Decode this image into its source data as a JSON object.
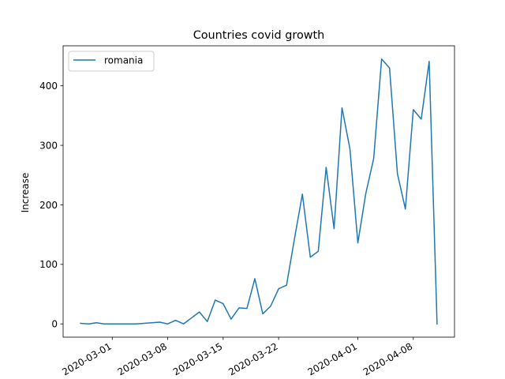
{
  "chart_data": {
    "type": "line",
    "title": "Countries covid growth",
    "xlabel": "",
    "ylabel": "Increase",
    "x": [
      "2020-02-26",
      "2020-02-27",
      "2020-02-28",
      "2020-02-29",
      "2020-03-01",
      "2020-03-02",
      "2020-03-03",
      "2020-03-04",
      "2020-03-05",
      "2020-03-06",
      "2020-03-07",
      "2020-03-08",
      "2020-03-09",
      "2020-03-10",
      "2020-03-11",
      "2020-03-12",
      "2020-03-13",
      "2020-03-14",
      "2020-03-15",
      "2020-03-16",
      "2020-03-17",
      "2020-03-18",
      "2020-03-19",
      "2020-03-20",
      "2020-03-21",
      "2020-03-22",
      "2020-03-23",
      "2020-03-24",
      "2020-03-25",
      "2020-03-26",
      "2020-03-27",
      "2020-03-28",
      "2020-03-29",
      "2020-03-30",
      "2020-03-31",
      "2020-04-01",
      "2020-04-02",
      "2020-04-03",
      "2020-04-04",
      "2020-04-05",
      "2020-04-06",
      "2020-04-07",
      "2020-04-08",
      "2020-04-09",
      "2020-04-10",
      "2020-04-11"
    ],
    "series": [
      {
        "name": "romania",
        "color": "#1f77b4",
        "values": [
          1,
          0,
          2,
          0,
          0,
          0,
          0,
          0,
          1,
          2,
          3,
          0,
          6,
          0,
          10,
          20,
          4,
          40,
          34,
          8,
          27,
          26,
          76,
          17,
          30,
          59,
          65,
          143,
          218,
          112,
          122,
          263,
          160,
          363,
          294,
          136,
          219,
          278,
          445,
          430,
          252,
          193,
          360,
          344,
          441,
          0
        ]
      }
    ],
    "xticks": [
      "2020-03-01",
      "2020-03-08",
      "2020-03-15",
      "2020-03-22",
      "2020-04-01",
      "2020-04-08"
    ],
    "yticks": [
      0,
      100,
      200,
      300,
      400
    ],
    "xlim": [
      "2020-02-23T19:12",
      "2020-04-13T04:48"
    ],
    "ylim": [
      -22.25,
      467.25
    ],
    "legend": {
      "position": "upper-left",
      "entries": [
        "romania"
      ]
    },
    "grid": false
  }
}
